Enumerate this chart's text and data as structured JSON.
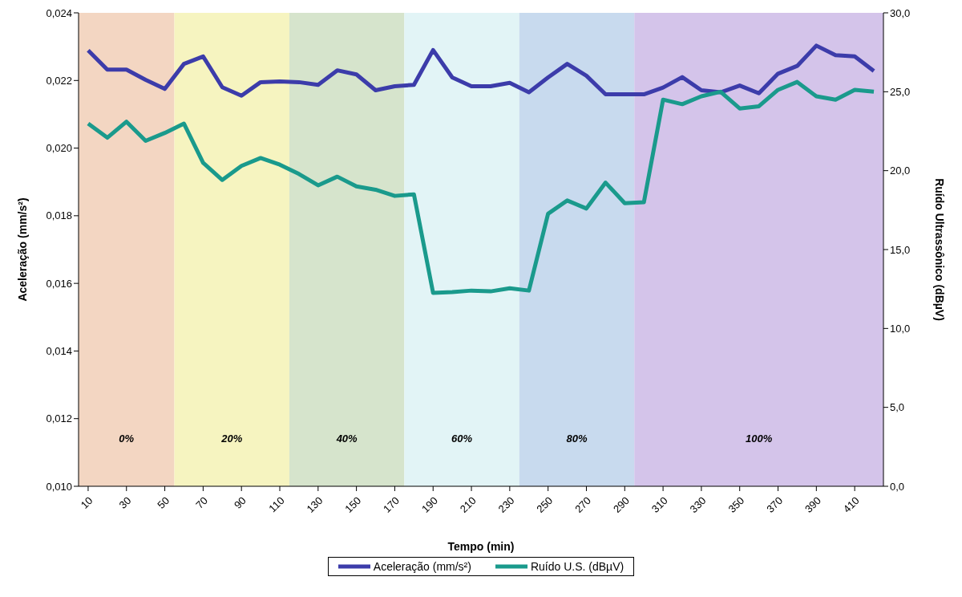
{
  "chart_data": {
    "type": "line",
    "xlabel": "Tempo (min)",
    "ylabel": "Aceleração (mm/s²)",
    "y2label": "Ruído Ultrassônico (dBµV)",
    "x": [
      10,
      20,
      30,
      40,
      50,
      60,
      70,
      80,
      90,
      100,
      110,
      120,
      130,
      140,
      150,
      160,
      170,
      180,
      190,
      200,
      210,
      220,
      230,
      240,
      250,
      260,
      270,
      280,
      290,
      300,
      310,
      320,
      330,
      340,
      350,
      360,
      370,
      380,
      390,
      400,
      410,
      420
    ],
    "xlim": [
      5,
      425
    ],
    "xticks": [
      10,
      30,
      50,
      70,
      90,
      110,
      130,
      150,
      170,
      190,
      210,
      230,
      250,
      270,
      290,
      310,
      330,
      350,
      370,
      390,
      410
    ],
    "ylim": [
      0.01,
      0.024
    ],
    "yticks": [
      {
        "value": 0.01,
        "label": "0,010"
      },
      {
        "value": 0.012,
        "label": "0,012"
      },
      {
        "value": 0.014,
        "label": "0,014"
      },
      {
        "value": 0.016,
        "label": "0,016"
      },
      {
        "value": 0.018,
        "label": "0,018"
      },
      {
        "value": 0.02,
        "label": "0,020"
      },
      {
        "value": 0.022,
        "label": "0,022"
      },
      {
        "value": 0.024,
        "label": "0,024"
      }
    ],
    "y2lim": [
      0,
      30
    ],
    "y2ticks": [
      {
        "value": 0,
        "label": "0,0"
      },
      {
        "value": 5,
        "label": "5,0"
      },
      {
        "value": 10,
        "label": "10,0"
      },
      {
        "value": 15,
        "label": "15,0"
      },
      {
        "value": 20,
        "label": "20,0"
      },
      {
        "value": 25,
        "label": "25,0"
      },
      {
        "value": 30,
        "label": "30,0"
      }
    ],
    "series": [
      {
        "name": "Aceleração (mm/s²)",
        "color": "#3c3caa",
        "values": [
          0.02289,
          0.02232,
          0.02232,
          0.02202,
          0.02175,
          0.02249,
          0.02271,
          0.0218,
          0.02155,
          0.02195,
          0.02197,
          0.02195,
          0.02187,
          0.0223,
          0.02218,
          0.02171,
          0.02183,
          0.02187,
          0.0229,
          0.02209,
          0.02183,
          0.02183,
          0.02193,
          0.02165,
          0.02209,
          0.02249,
          0.02214,
          0.02159,
          0.02159,
          0.02159,
          0.02179,
          0.0221,
          0.02171,
          0.02165,
          0.02185,
          0.02162,
          0.0222,
          0.02243,
          0.02303,
          0.02275,
          0.02271,
          0.02228
        ]
      },
      {
        "name": "Ruído U.S. (dBµV)",
        "color": "#1a9a8c",
        "axis": "y2",
        "values": [
          22.98,
          22.09,
          23.1,
          21.89,
          22.39,
          22.98,
          20.5,
          19.41,
          20.3,
          20.8,
          20.38,
          19.79,
          19.07,
          19.62,
          19.0,
          18.79,
          18.4,
          18.5,
          12.25,
          12.3,
          12.4,
          12.35,
          12.55,
          12.4,
          17.27,
          18.11,
          17.6,
          19.24,
          17.94,
          18.0,
          24.5,
          24.21,
          24.71,
          25.0,
          23.94,
          24.08,
          25.12,
          25.62,
          24.71,
          24.5,
          25.12,
          25.0
        ]
      }
    ],
    "bands": [
      {
        "axis": "x",
        "from": 5,
        "to": 55,
        "label": "0%",
        "color": "#f3d6c2"
      },
      {
        "axis": "x",
        "from": 55,
        "to": 115,
        "label": "20%",
        "color": "#f6f4c0"
      },
      {
        "axis": "x",
        "from": 115,
        "to": 175,
        "label": "40%",
        "color": "#d6e4cc"
      },
      {
        "axis": "x",
        "from": 175,
        "to": 235,
        "label": "60%",
        "color": "#e2f4f6"
      },
      {
        "axis": "x",
        "from": 235,
        "to": 295,
        "label": "80%",
        "color": "#c8daee"
      },
      {
        "axis": "x",
        "from": 295,
        "to": 425,
        "label": "100%",
        "color": "#d4c4ea"
      }
    ],
    "grid": false,
    "legend": "bottom",
    "marker": "none",
    "line_style": "solid"
  }
}
